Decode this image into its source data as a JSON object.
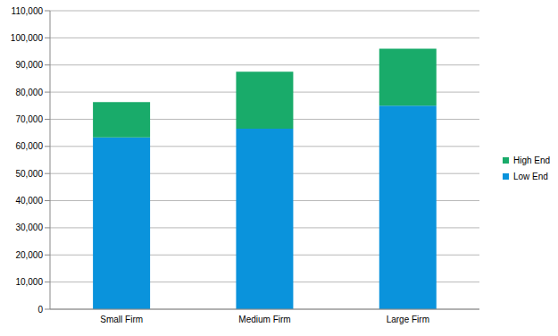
{
  "chart_data": {
    "type": "bar",
    "stacked": true,
    "grid": true,
    "legend": "right",
    "categories": [
      "Small Firm",
      "Medium Firm",
      "Large Firm"
    ],
    "series": [
      {
        "name": "Low End",
        "color": "#0A93DC",
        "values": [
          63300,
          66500,
          75000
        ]
      },
      {
        "name": "High End",
        "color": "#19AB6A",
        "values": [
          13000,
          21000,
          21000
        ]
      }
    ],
    "ylim": [
      0,
      110000
    ],
    "yticks": [
      0,
      {
        "value": 10000,
        "label": "10,000"
      },
      {
        "value": 20000,
        "label": "20,000"
      },
      {
        "value": 30000,
        "label": "30,000"
      },
      {
        "value": 40000,
        "label": "40,000"
      },
      {
        "value": 50000,
        "label": "50,000"
      },
      {
        "value": 60000,
        "label": "60,000"
      },
      {
        "value": 70000,
        "label": "70,000"
      },
      {
        "value": 80000,
        "label": "80,000"
      },
      {
        "value": 90000,
        "label": "90,000"
      },
      {
        "value": 100000,
        "label": "100,000"
      },
      {
        "value": 110000,
        "label": "110,000"
      }
    ]
  }
}
